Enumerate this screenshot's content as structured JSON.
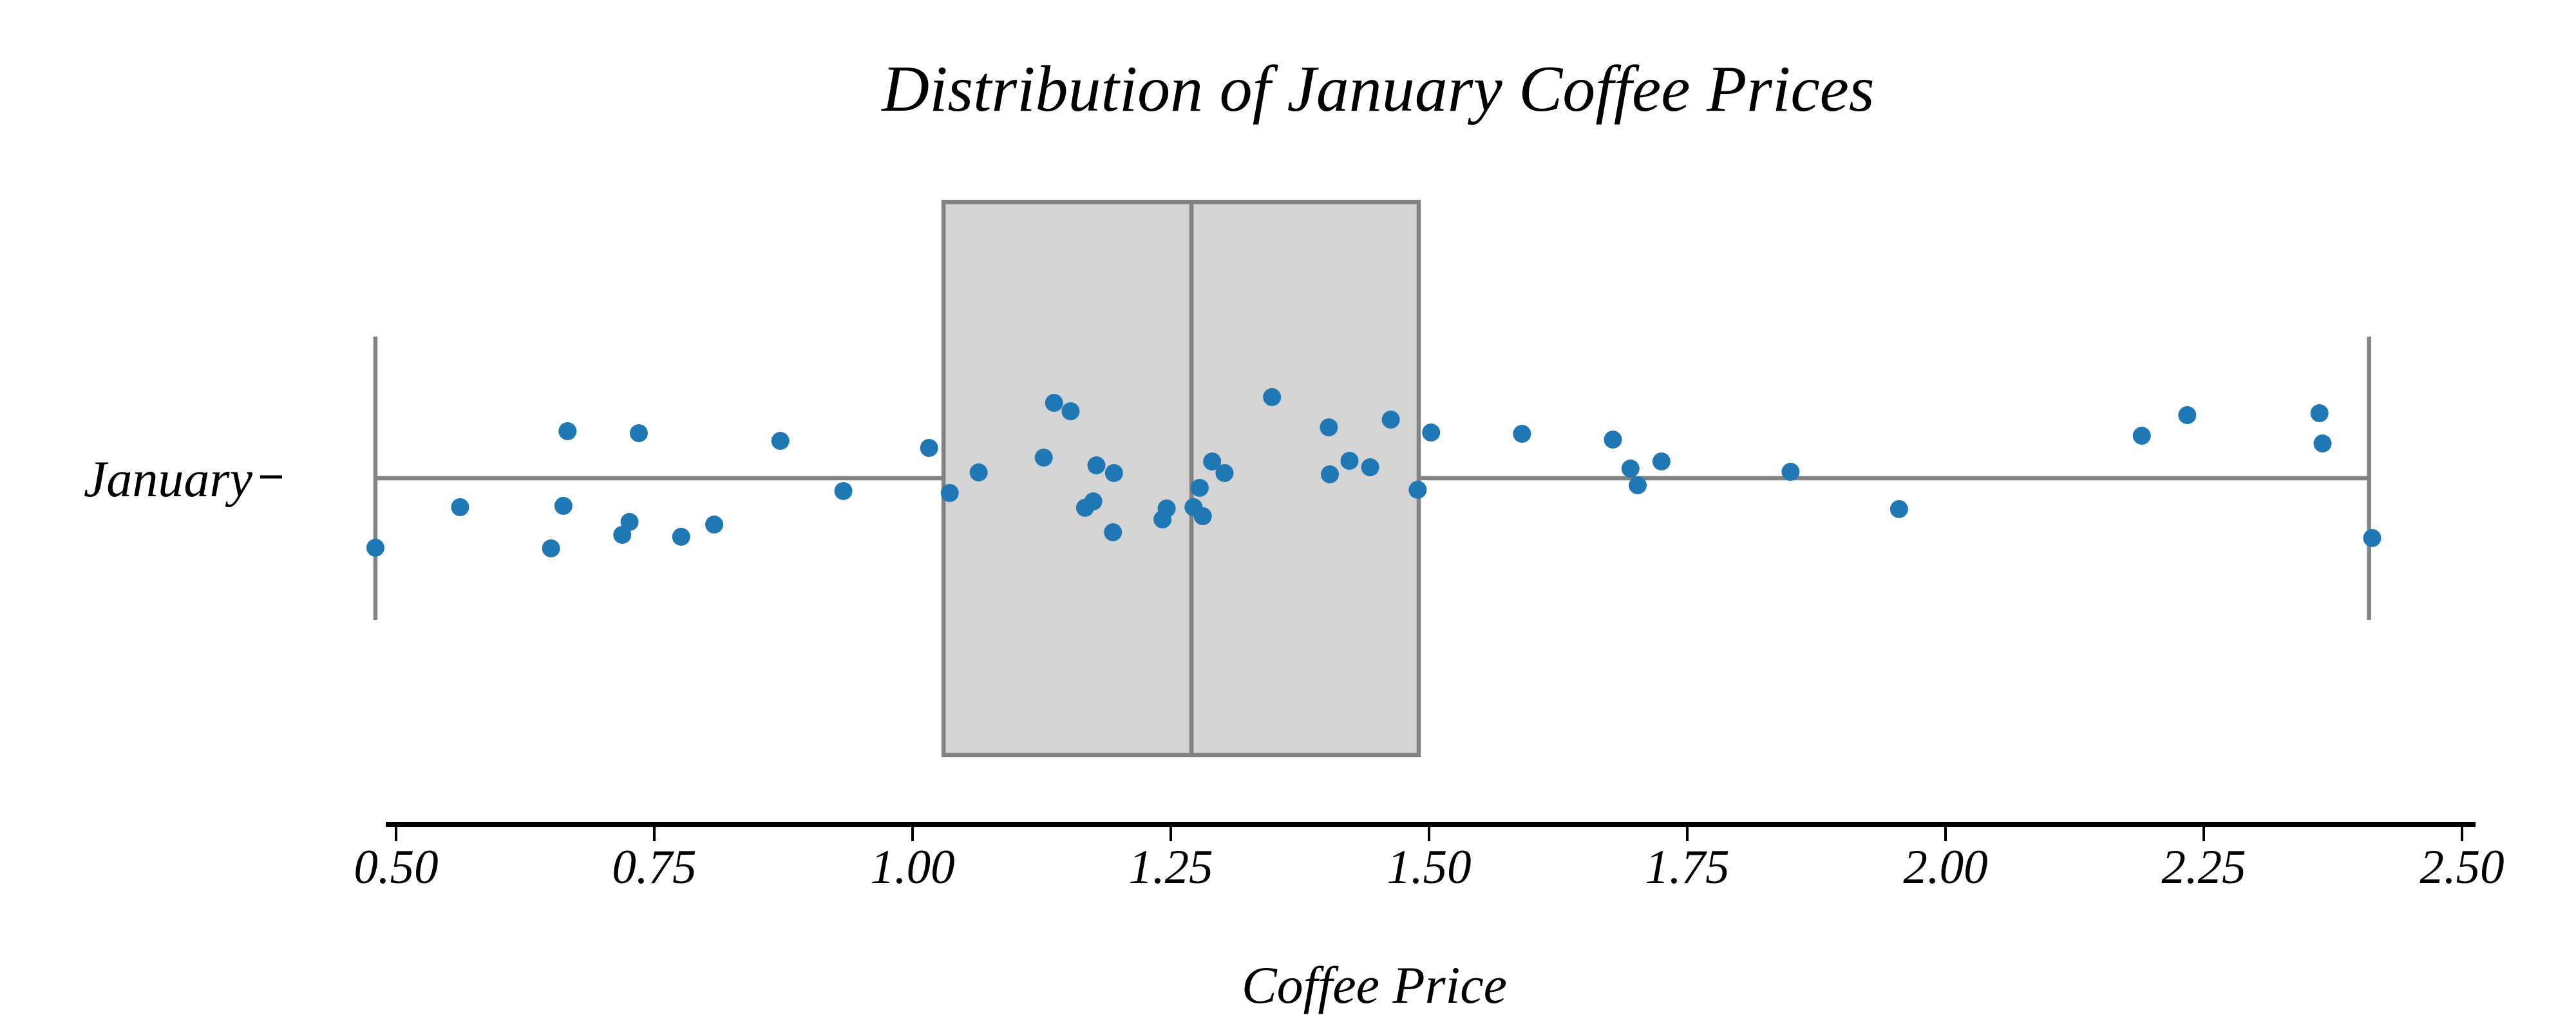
{
  "figure": {
    "title": "Distribution of January Coffee Prices",
    "xlabel": "Coffee Price",
    "category_label": "January"
  },
  "colors": {
    "dot": "#1f77b4",
    "box_fill": "#d4d4d4",
    "box_edge": "#828282",
    "whisker": "#828282",
    "axis": "#000000"
  },
  "chart_data": {
    "type": "boxplot_strip",
    "orientation": "horizontal",
    "title": "Distribution of January Coffee Prices",
    "xlabel": "Coffee Price",
    "category": "January",
    "xlim": [
      0.49,
      2.51
    ],
    "x_ticks": [
      0.5,
      0.75,
      1.0,
      1.25,
      1.5,
      1.75,
      2.0,
      2.25,
      2.5
    ],
    "x_tick_labels": [
      "0.50",
      "0.75",
      "1.00",
      "1.25",
      "1.50",
      "1.75",
      "2.00",
      "2.25",
      "2.50"
    ],
    "grid": false,
    "box": {
      "q1": 1.03,
      "median": 1.27,
      "q3": 1.49,
      "whisker_low": 0.48,
      "whisker_high": 2.41
    },
    "points": [
      {
        "x": 0.48,
        "dy": 108
      },
      {
        "x": 0.562,
        "dy": 45
      },
      {
        "x": 0.65,
        "dy": 109
      },
      {
        "x": 0.662,
        "dy": 43
      },
      {
        "x": 0.666,
        "dy": -73
      },
      {
        "x": 0.719,
        "dy": 88
      },
      {
        "x": 0.726,
        "dy": 68
      },
      {
        "x": 0.735,
        "dy": -70
      },
      {
        "x": 0.776,
        "dy": 91
      },
      {
        "x": 0.808,
        "dy": 72
      },
      {
        "x": 0.872,
        "dy": -58
      },
      {
        "x": 0.933,
        "dy": 20
      },
      {
        "x": 1.016,
        "dy": -47
      },
      {
        "x": 1.036,
        "dy": 23
      },
      {
        "x": 1.064,
        "dy": -9
      },
      {
        "x": 1.127,
        "dy": -32
      },
      {
        "x": 1.137,
        "dy": -117
      },
      {
        "x": 1.153,
        "dy": -104
      },
      {
        "x": 1.167,
        "dy": 46
      },
      {
        "x": 1.175,
        "dy": 36
      },
      {
        "x": 1.178,
        "dy": -20
      },
      {
        "x": 1.194,
        "dy": 84
      },
      {
        "x": 1.195,
        "dy": -8
      },
      {
        "x": 1.242,
        "dy": 64
      },
      {
        "x": 1.246,
        "dy": 47
      },
      {
        "x": 1.272,
        "dy": 45
      },
      {
        "x": 1.278,
        "dy": 15
      },
      {
        "x": 1.281,
        "dy": 59
      },
      {
        "x": 1.29,
        "dy": -26
      },
      {
        "x": 1.302,
        "dy": -8
      },
      {
        "x": 1.348,
        "dy": -126
      },
      {
        "x": 1.403,
        "dy": -79
      },
      {
        "x": 1.404,
        "dy": -6
      },
      {
        "x": 1.423,
        "dy": -27
      },
      {
        "x": 1.443,
        "dy": -17
      },
      {
        "x": 1.463,
        "dy": -91
      },
      {
        "x": 1.489,
        "dy": 18
      },
      {
        "x": 1.502,
        "dy": -71
      },
      {
        "x": 1.59,
        "dy": -69
      },
      {
        "x": 1.678,
        "dy": -60
      },
      {
        "x": 1.695,
        "dy": -15
      },
      {
        "x": 1.702,
        "dy": 11
      },
      {
        "x": 1.725,
        "dy": -26
      },
      {
        "x": 1.85,
        "dy": -10
      },
      {
        "x": 1.955,
        "dy": 48
      },
      {
        "x": 2.19,
        "dy": -66
      },
      {
        "x": 2.234,
        "dy": -98
      },
      {
        "x": 2.362,
        "dy": -101
      },
      {
        "x": 2.365,
        "dy": -54
      },
      {
        "x": 2.413,
        "dy": 93
      }
    ]
  }
}
